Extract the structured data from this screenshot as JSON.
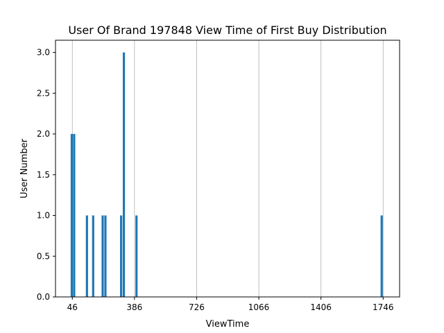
{
  "chart_data": {
    "type": "bar",
    "title": "User Of Brand 197848 View Time of First Buy Distribution",
    "xlabel": "ViewTime",
    "ylabel": "User Number",
    "xlim": [
      -46,
      1836
    ],
    "ylim": [
      0,
      3.15
    ],
    "x_ticks": [
      46,
      386,
      726,
      1066,
      1406,
      1746
    ],
    "y_ticks": [
      "0.0",
      "0.5",
      "1.0",
      "1.5",
      "2.0",
      "2.5",
      "3.0"
    ],
    "grid": "vertical lines at x ticks",
    "bar_color": "#1f77b4",
    "bar_width": 12,
    "bars": [
      {
        "x": 43,
        "value": 2
      },
      {
        "x": 56,
        "value": 2
      },
      {
        "x": 126,
        "value": 1
      },
      {
        "x": 160,
        "value": 1
      },
      {
        "x": 212,
        "value": 1
      },
      {
        "x": 227,
        "value": 1
      },
      {
        "x": 313,
        "value": 1
      },
      {
        "x": 328,
        "value": 3
      },
      {
        "x": 397,
        "value": 1
      },
      {
        "x": 1738,
        "value": 1
      }
    ]
  }
}
